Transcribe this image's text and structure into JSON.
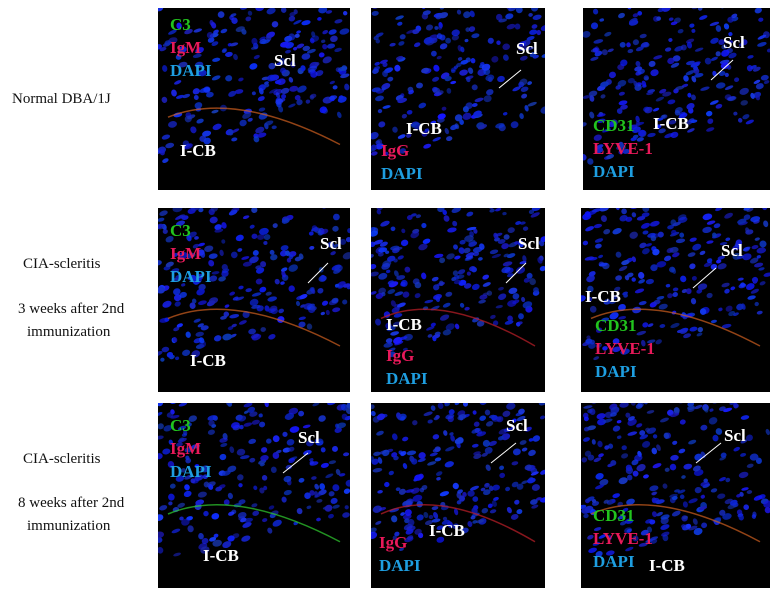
{
  "rows": [
    {
      "label": [
        "Normal DBA/1J"
      ],
      "panels": [
        {
          "stains": [
            "C3",
            "IgM",
            "DAPI"
          ],
          "labels": [
            "Scl",
            "I-CB"
          ]
        },
        {
          "stains": [
            "IgG",
            "DAPI"
          ],
          "labels": [
            "Scl",
            "I-CB"
          ]
        },
        {
          "stains": [
            "CD31",
            "LYVE-1",
            "DAPI"
          ],
          "labels": [
            "Scl",
            "I-CB"
          ]
        }
      ]
    },
    {
      "label": [
        "CIA-scleritis",
        "3 weeks after 2nd",
        "immunization"
      ],
      "panels": [
        {
          "stains": [
            "C3",
            "IgM",
            "DAPI"
          ],
          "labels": [
            "Scl",
            "I-CB"
          ]
        },
        {
          "stains": [
            "IgG",
            "DAPI"
          ],
          "labels": [
            "Scl",
            "I-CB"
          ]
        },
        {
          "stains": [
            "CD31",
            "LYVE-1",
            "DAPI"
          ],
          "labels": [
            "Scl",
            "I-CB"
          ]
        }
      ]
    },
    {
      "label": [
        "CIA-scleritis",
        "8 weeks after 2nd",
        "immunization"
      ],
      "panels": [
        {
          "stains": [
            "C3",
            "IgM",
            "DAPI"
          ],
          "labels": [
            "Scl",
            "I-CB"
          ]
        },
        {
          "stains": [
            "IgG",
            "DAPI"
          ],
          "labels": [
            "Scl",
            "I-CB"
          ]
        },
        {
          "stains": [
            "CD31",
            "LYVE-1",
            "DAPI"
          ],
          "labels": [
            "Scl",
            "I-CB"
          ]
        }
      ]
    }
  ]
}
